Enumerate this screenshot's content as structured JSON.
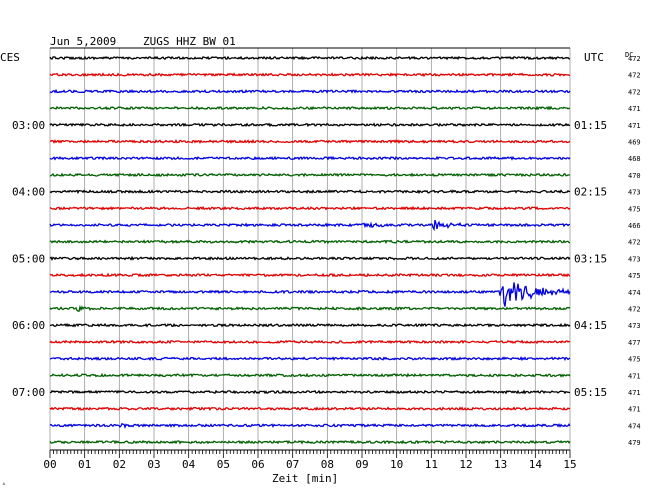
{
  "header": {
    "date": "Jun 5,2009",
    "station": "ZUGS HHZ BW 01",
    "left_zone": "CES",
    "right_zone": "UTC",
    "dc_label": "DC"
  },
  "chart_data": {
    "type": "seismogram-helicorder",
    "title": "Jun 5,2009   ZUGS HHZ BW 01",
    "xlabel": "Zeit [min]",
    "x_ticks": [
      "00",
      "01",
      "02",
      "03",
      "04",
      "05",
      "06",
      "07",
      "08",
      "09",
      "10",
      "11",
      "12",
      "13",
      "14",
      "15"
    ],
    "xlim": [
      0,
      15
    ],
    "trace_colors": [
      "#000000",
      "#e00000",
      "#0000e0",
      "#006000"
    ],
    "traces": 24,
    "local_time_labels": [
      {
        "trace": 4,
        "text": "03:00"
      },
      {
        "trace": 8,
        "text": "04:00"
      },
      {
        "trace": 12,
        "text": "05:00"
      },
      {
        "trace": 16,
        "text": "06:00"
      },
      {
        "trace": 20,
        "text": "07:00"
      }
    ],
    "utc_time_labels": [
      {
        "trace": 4,
        "text": "01:15"
      },
      {
        "trace": 8,
        "text": "02:15"
      },
      {
        "trace": 12,
        "text": "03:15"
      },
      {
        "trace": 16,
        "text": "04:15"
      },
      {
        "trace": 20,
        "text": "05:15"
      }
    ],
    "dc_offsets": [
      "472",
      "472",
      "472",
      "471",
      "471",
      "469",
      "468",
      "470",
      "473",
      "475",
      "466",
      "472",
      "473",
      "475",
      "474",
      "472",
      "473",
      "477",
      "475",
      "471",
      "471",
      "471",
      "474",
      "479"
    ],
    "events": [
      {
        "trace": 10,
        "start_min": 9.0,
        "end_min": 9.9,
        "amplitude": 0.35
      },
      {
        "trace": 10,
        "start_min": 11.0,
        "end_min": 12.0,
        "amplitude": 0.6
      },
      {
        "trace": 14,
        "start_min": 12.95,
        "end_min": 15.0,
        "amplitude": 1.9
      },
      {
        "trace": 15,
        "start_min": 0.75,
        "end_min": 1.2,
        "amplitude": 0.5
      },
      {
        "trace": 22,
        "start_min": 2.0,
        "end_min": 2.2,
        "amplitude": 0.7
      }
    ]
  }
}
